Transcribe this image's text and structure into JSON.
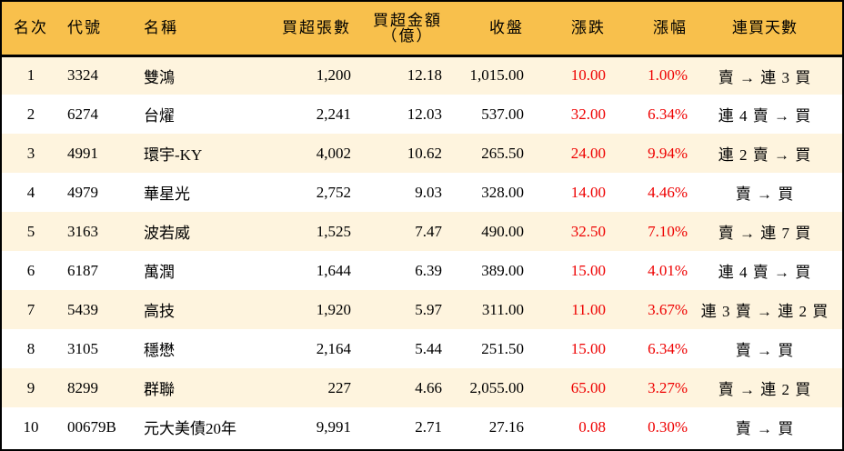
{
  "table": {
    "headers": {
      "rank": "名次",
      "code": "代號",
      "name": "名稱",
      "net_buy_volume": "買超張數",
      "net_buy_amount_line1": "買超金額",
      "net_buy_amount_line2": "（億）",
      "close": "收盤",
      "change": "漲跌",
      "change_pct": "漲幅",
      "streak": "連買天數"
    },
    "rows": [
      {
        "rank": "1",
        "code": "3324",
        "name": "雙鴻",
        "volume": "1,200",
        "amount": "12.18",
        "close": "1,015.00",
        "change": "10.00",
        "pct": "1.00%",
        "streak": "賣 → 連 3 買"
      },
      {
        "rank": "2",
        "code": "6274",
        "name": "台燿",
        "volume": "2,241",
        "amount": "12.03",
        "close": "537.00",
        "change": "32.00",
        "pct": "6.34%",
        "streak": "連 4 賣 → 買"
      },
      {
        "rank": "3",
        "code": "4991",
        "name": "環宇-KY",
        "volume": "4,002",
        "amount": "10.62",
        "close": "265.50",
        "change": "24.00",
        "pct": "9.94%",
        "streak": "連 2 賣 → 買"
      },
      {
        "rank": "4",
        "code": "4979",
        "name": "華星光",
        "volume": "2,752",
        "amount": "9.03",
        "close": "328.00",
        "change": "14.00",
        "pct": "4.46%",
        "streak": "賣 → 買"
      },
      {
        "rank": "5",
        "code": "3163",
        "name": "波若威",
        "volume": "1,525",
        "amount": "7.47",
        "close": "490.00",
        "change": "32.50",
        "pct": "7.10%",
        "streak": "賣 → 連 7 買"
      },
      {
        "rank": "6",
        "code": "6187",
        "name": "萬潤",
        "volume": "1,644",
        "amount": "6.39",
        "close": "389.00",
        "change": "15.00",
        "pct": "4.01%",
        "streak": "連 4 賣 → 買"
      },
      {
        "rank": "7",
        "code": "5439",
        "name": "高技",
        "volume": "1,920",
        "amount": "5.97",
        "close": "311.00",
        "change": "11.00",
        "pct": "3.67%",
        "streak": "連 3 賣 → 連 2 買"
      },
      {
        "rank": "8",
        "code": "3105",
        "name": "穩懋",
        "volume": "2,164",
        "amount": "5.44",
        "close": "251.50",
        "change": "15.00",
        "pct": "6.34%",
        "streak": "賣 → 買"
      },
      {
        "rank": "9",
        "code": "8299",
        "name": "群聯",
        "volume": "227",
        "amount": "4.66",
        "close": "2,055.00",
        "change": "65.00",
        "pct": "3.27%",
        "streak": "賣 → 連 2 買"
      },
      {
        "rank": "10",
        "code": "00679B",
        "name": "元大美債20年",
        "volume": "9,991",
        "amount": "2.71",
        "close": "27.16",
        "change": "0.08",
        "pct": "0.30%",
        "streak": "賣 → 買"
      }
    ]
  },
  "colors": {
    "header_bg": "#f8c04c",
    "odd_row_bg": "#fef4de",
    "even_row_bg": "#ffffff",
    "up_color": "#ee0000",
    "border": "#000000"
  }
}
